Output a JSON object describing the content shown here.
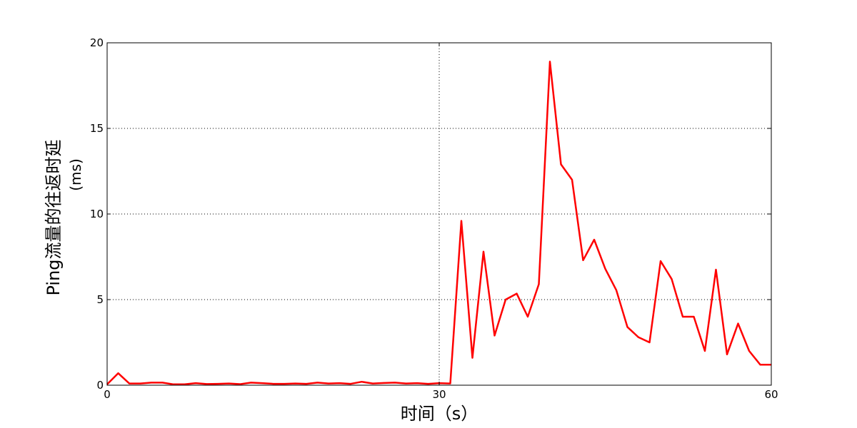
{
  "chart_data": {
    "type": "line",
    "xlabel": "时间（s）",
    "ylabel_line1": "Ping流量的往返时延",
    "ylabel_line2": "(ms)",
    "xlim": [
      0,
      60
    ],
    "ylim": [
      0,
      20
    ],
    "x_ticks": [
      0,
      30,
      60
    ],
    "y_ticks": [
      0,
      5,
      10,
      15,
      20
    ],
    "grid": "dotted, at tick positions",
    "line_color": "#ff0000",
    "series": [
      {
        "x": [
          0,
          1,
          2,
          3,
          4,
          5,
          6,
          7,
          8,
          9,
          10,
          11,
          12,
          13,
          14,
          15,
          16,
          17,
          18,
          19,
          20,
          21,
          22,
          23,
          24,
          25,
          26,
          27,
          28,
          29,
          30,
          31,
          32,
          33,
          34,
          35,
          36,
          37,
          38,
          39,
          40,
          41,
          42,
          43,
          44,
          45,
          46,
          47,
          48,
          49,
          50,
          51,
          52,
          53,
          54,
          55,
          56,
          57,
          58,
          59,
          60
        ],
        "y": [
          0.05,
          0.7,
          0.1,
          0.1,
          0.15,
          0.15,
          0.05,
          0.05,
          0.12,
          0.07,
          0.08,
          0.1,
          0.06,
          0.15,
          0.12,
          0.08,
          0.08,
          0.1,
          0.08,
          0.15,
          0.1,
          0.12,
          0.08,
          0.2,
          0.1,
          0.13,
          0.15,
          0.1,
          0.12,
          0.08,
          0.12,
          0.1,
          9.6,
          1.6,
          7.8,
          2.9,
          5.0,
          5.35,
          4.0,
          5.9,
          18.9,
          12.9,
          12.0,
          7.3,
          8.5,
          6.8,
          5.55,
          3.4,
          2.8,
          2.5,
          7.25,
          6.2,
          4.0,
          4.0,
          2.0,
          6.75,
          1.8,
          3.6,
          2.0,
          1.2,
          1.2
        ]
      }
    ]
  }
}
